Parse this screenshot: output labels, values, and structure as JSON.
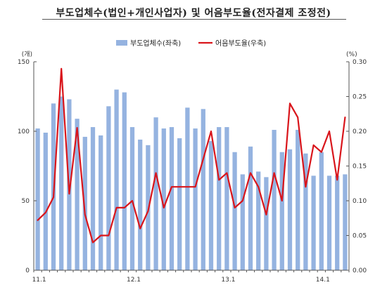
{
  "title": "부도업체수(법인+개인사업자) 및 어음부도율(전자결제 조정전)",
  "chart_data": {
    "type": "bar",
    "title": "부도업체수(법인+개인사업자) 및 어음부도율(전자결제 조정전)",
    "left_unit": "(개)",
    "right_unit": "(%)",
    "x_tick_labels": [
      "11.1",
      "12.1",
      "13.1",
      "14.1"
    ],
    "x_tick_index": [
      0,
      12,
      24,
      36
    ],
    "ylim_left": [
      0,
      150
    ],
    "yticks_left": [
      "0",
      "50",
      "100",
      "150"
    ],
    "ylim_right": [
      0,
      0.3
    ],
    "yticks_right": [
      "0.00",
      "0.05",
      "0.10",
      "0.15",
      "0.20",
      "0.25",
      "0.30"
    ],
    "grid": false,
    "legend_position": "top",
    "bar_color": "#95b3e0",
    "line_color": "#d9151b",
    "series": [
      {
        "name": "부도업체수(좌축)",
        "type": "bar",
        "axis": "left",
        "values": [
          102,
          99,
          120,
          125,
          123,
          109,
          96,
          103,
          97,
          118,
          130,
          128,
          103,
          94,
          90,
          110,
          102,
          103,
          95,
          117,
          102,
          116,
          93,
          103,
          103,
          85,
          69,
          89,
          71,
          67,
          101,
          85,
          87,
          101,
          84,
          68,
          85,
          68,
          68,
          69
        ]
      },
      {
        "name": "어음부도율(우축)",
        "type": "line",
        "axis": "right",
        "values": [
          0.072,
          0.083,
          0.105,
          0.29,
          0.11,
          0.205,
          0.08,
          0.04,
          0.05,
          0.05,
          0.09,
          0.09,
          0.1,
          0.06,
          0.085,
          0.14,
          0.09,
          0.12,
          0.12,
          0.12,
          0.12,
          0.16,
          0.2,
          0.13,
          0.14,
          0.09,
          0.1,
          0.14,
          0.12,
          0.08,
          0.14,
          0.1,
          0.24,
          0.22,
          0.12,
          0.18,
          0.17,
          0.2,
          0.13,
          0.22
        ]
      }
    ]
  }
}
